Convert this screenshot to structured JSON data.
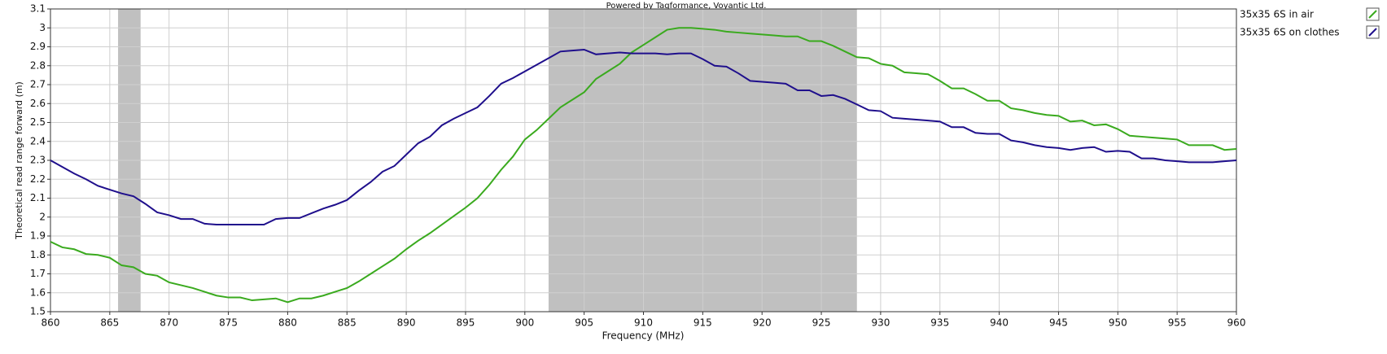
{
  "chart_data": {
    "type": "line",
    "title": "Powered by Tagformance, Voyantic Ltd.",
    "x_label": "Frequency (MHz)",
    "y_label": "Theoretical read range forward (m)",
    "x": [
      860,
      861,
      862,
      863,
      864,
      865,
      866,
      867,
      868,
      869,
      870,
      871,
      872,
      873,
      874,
      875,
      876,
      877,
      878,
      879,
      880,
      881,
      882,
      883,
      884,
      885,
      886,
      887,
      888,
      889,
      890,
      891,
      892,
      893,
      894,
      895,
      896,
      897,
      898,
      899,
      900,
      901,
      902,
      903,
      904,
      905,
      906,
      907,
      908,
      909,
      910,
      911,
      912,
      913,
      914,
      915,
      916,
      917,
      918,
      919,
      920,
      921,
      922,
      923,
      924,
      925,
      926,
      927,
      928,
      929,
      930,
      931,
      932,
      933,
      934,
      935,
      936,
      937,
      938,
      939,
      940,
      941,
      942,
      943,
      944,
      945,
      946,
      947,
      948,
      949,
      950,
      951,
      952,
      953,
      954,
      955,
      956,
      957,
      958,
      959,
      960
    ],
    "series": [
      {
        "name": "35x35 6S in air",
        "color": "#3aaa1e",
        "values": [
          1.87,
          1.84,
          1.83,
          1.805,
          1.8,
          1.785,
          1.745,
          1.735,
          1.7,
          1.69,
          1.655,
          1.64,
          1.625,
          1.605,
          1.585,
          1.575,
          1.575,
          1.56,
          1.565,
          1.57,
          1.55,
          1.57,
          1.57,
          1.585,
          1.605,
          1.625,
          1.66,
          1.7,
          1.74,
          1.78,
          1.83,
          1.875,
          1.915,
          1.96,
          2.005,
          2.05,
          2.1,
          2.17,
          2.25,
          2.32,
          2.41,
          2.46,
          2.52,
          2.58,
          2.62,
          2.66,
          2.73,
          2.77,
          2.81,
          2.87,
          2.91,
          2.95,
          2.99,
          3.0,
          3.0,
          2.995,
          2.99,
          2.98,
          2.975,
          2.97,
          2.965,
          2.96,
          2.955,
          2.955,
          2.93,
          2.93,
          2.905,
          2.875,
          2.845,
          2.84,
          2.81,
          2.8,
          2.765,
          2.76,
          2.755,
          2.72,
          2.68,
          2.68,
          2.65,
          2.615,
          2.615,
          2.575,
          2.565,
          2.55,
          2.54,
          2.535,
          2.505,
          2.51,
          2.485,
          2.49,
          2.465,
          2.43,
          2.425,
          2.42,
          2.415,
          2.41,
          2.38,
          2.38,
          2.38,
          2.355,
          2.36
        ]
      },
      {
        "name": "35x35 6S on clothes",
        "color": "#1f0f8c",
        "values": [
          2.3,
          2.265,
          2.23,
          2.2,
          2.165,
          2.145,
          2.125,
          2.11,
          2.07,
          2.025,
          2.01,
          1.99,
          1.99,
          1.965,
          1.96,
          1.96,
          1.96,
          1.96,
          1.96,
          1.99,
          1.995,
          1.995,
          2.02,
          2.045,
          2.065,
          2.09,
          2.14,
          2.185,
          2.24,
          2.27,
          2.33,
          2.39,
          2.425,
          2.485,
          2.52,
          2.55,
          2.58,
          2.64,
          2.705,
          2.735,
          2.77,
          2.805,
          2.84,
          2.875,
          2.88,
          2.885,
          2.86,
          2.865,
          2.87,
          2.865,
          2.865,
          2.865,
          2.86,
          2.865,
          2.865,
          2.835,
          2.8,
          2.795,
          2.76,
          2.72,
          2.715,
          2.71,
          2.705,
          2.67,
          2.67,
          2.64,
          2.645,
          2.625,
          2.595,
          2.565,
          2.56,
          2.525,
          2.52,
          2.515,
          2.51,
          2.505,
          2.475,
          2.475,
          2.445,
          2.44,
          2.44,
          2.405,
          2.395,
          2.38,
          2.37,
          2.365,
          2.355,
          2.365,
          2.37,
          2.345,
          2.35,
          2.345,
          2.31,
          2.31,
          2.3,
          2.295,
          2.29,
          2.29,
          2.29,
          2.295,
          2.3
        ]
      }
    ],
    "bands": [
      [
        865.7,
        867.6
      ],
      [
        902,
        928
      ]
    ],
    "band_color": "#c0c0c0",
    "xlim": [
      860,
      960
    ],
    "xticks": [
      860,
      865,
      870,
      875,
      880,
      885,
      890,
      895,
      900,
      905,
      910,
      915,
      920,
      925,
      930,
      935,
      940,
      945,
      950,
      955,
      960
    ],
    "ylim": [
      1.5,
      3.1
    ],
    "yticks": [
      1.5,
      1.6,
      1.7,
      1.8,
      1.9,
      2,
      2.1,
      2.2,
      2.3,
      2.4,
      2.5,
      2.6,
      2.7,
      2.8,
      2.9,
      3,
      3.1
    ],
    "grid": true,
    "legend": "right"
  }
}
